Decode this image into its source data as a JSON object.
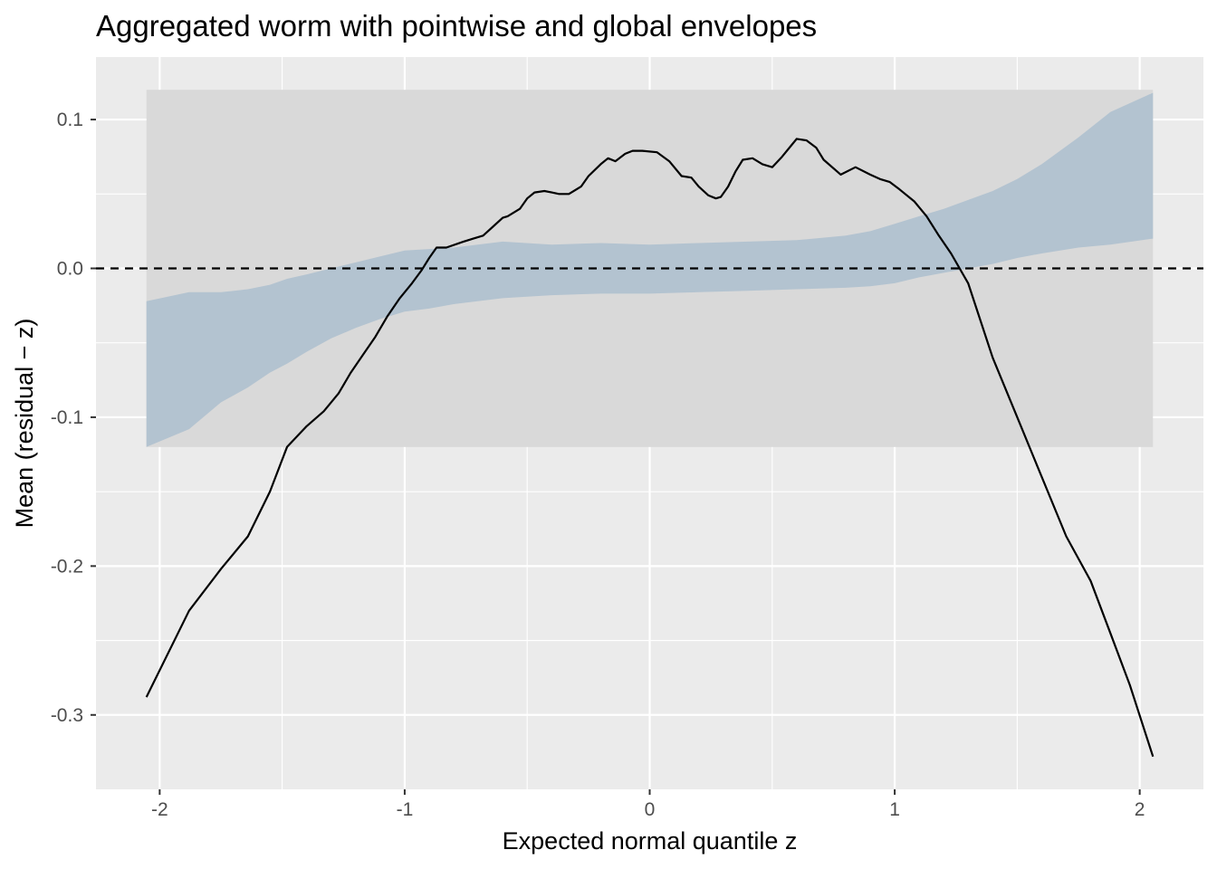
{
  "chart_data": {
    "type": "line",
    "title": "Aggregated worm with pointwise and global envelopes",
    "xlabel": "Expected normal quantile z",
    "ylabel": "Mean (residual − z)",
    "xlim": [
      -2.26,
      2.26
    ],
    "ylim": [
      -0.35,
      0.142
    ],
    "x_ticks": [
      -2,
      -1,
      0,
      1,
      2
    ],
    "x_tick_labels": [
      "-2",
      "-1",
      "0",
      "1",
      "2"
    ],
    "y_ticks": [
      -0.3,
      -0.2,
      -0.1,
      0.0,
      0.1
    ],
    "y_tick_labels": [
      "-0.3",
      "-0.2",
      "-0.1",
      "0.0",
      "0.1"
    ],
    "grid": true,
    "legend": "none",
    "colors": {
      "panel_background": "#ebebeb",
      "gridline": "#ffffff",
      "global_envelope": "#d9d9d9",
      "pointwise_envelope": "#b3c3d0",
      "worm_line": "#000000",
      "reference_line": "#000000"
    },
    "reference_line": {
      "y": 0,
      "style": "dashed"
    },
    "global_envelope": {
      "x_range": [
        -2.054,
        2.054
      ],
      "lower": -0.12,
      "upper": 0.12
    },
    "pointwise_envelope": {
      "x": [
        -2.054,
        -1.88,
        -1.75,
        -1.64,
        -1.55,
        -1.48,
        -1.4,
        -1.3,
        -1.2,
        -1.1,
        -1.0,
        -0.9,
        -0.8,
        -0.6,
        -0.4,
        -0.2,
        0.0,
        0.2,
        0.4,
        0.6,
        0.8,
        0.9,
        1.0,
        1.1,
        1.2,
        1.3,
        1.4,
        1.5,
        1.6,
        1.75,
        1.88,
        2.054
      ],
      "lower": [
        -0.12,
        -0.108,
        -0.09,
        -0.08,
        -0.07,
        -0.064,
        -0.056,
        -0.047,
        -0.04,
        -0.034,
        -0.029,
        -0.027,
        -0.024,
        -0.02,
        -0.018,
        -0.017,
        -0.017,
        -0.016,
        -0.015,
        -0.014,
        -0.013,
        -0.012,
        -0.01,
        -0.006,
        -0.003,
        0.0,
        0.003,
        0.007,
        0.01,
        0.014,
        0.016,
        0.02
      ],
      "upper": [
        -0.022,
        -0.016,
        -0.016,
        -0.014,
        -0.011,
        -0.007,
        -0.004,
        0.0,
        0.004,
        0.008,
        0.012,
        0.013,
        0.014,
        0.018,
        0.016,
        0.017,
        0.016,
        0.017,
        0.018,
        0.019,
        0.022,
        0.025,
        0.03,
        0.035,
        0.04,
        0.046,
        0.052,
        0.06,
        0.07,
        0.088,
        0.105,
        0.118
      ]
    },
    "series": [
      {
        "x": [
          -2.054,
          -1.88,
          -1.75,
          -1.64,
          -1.55,
          -1.48,
          -1.4,
          -1.33,
          -1.27,
          -1.22,
          -1.17,
          -1.12,
          -1.07,
          -1.02,
          -0.97,
          -0.93,
          -0.9,
          -0.87,
          -0.83,
          -0.76,
          -0.72,
          -0.68,
          -0.64,
          -0.6,
          -0.58,
          -0.53,
          -0.5,
          -0.47,
          -0.43,
          -0.4,
          -0.37,
          -0.33,
          -0.28,
          -0.25,
          -0.2,
          -0.17,
          -0.14,
          -0.1,
          -0.07,
          -0.03,
          0.03,
          0.08,
          0.13,
          0.17,
          0.2,
          0.24,
          0.27,
          0.29,
          0.32,
          0.35,
          0.38,
          0.42,
          0.46,
          0.5,
          0.54,
          0.58,
          0.6,
          0.64,
          0.68,
          0.71,
          0.78,
          0.84,
          0.9,
          0.94,
          0.98,
          1.02,
          1.08,
          1.13,
          1.18,
          1.23,
          1.3,
          1.4,
          1.5,
          1.6,
          1.7,
          1.8,
          1.88,
          1.96,
          2.054
        ],
        "y": [
          -0.288,
          -0.23,
          -0.202,
          -0.18,
          -0.15,
          -0.12,
          -0.106,
          -0.096,
          -0.084,
          -0.07,
          -0.058,
          -0.046,
          -0.032,
          -0.02,
          -0.01,
          -0.001,
          0.007,
          0.014,
          0.014,
          0.018,
          0.02,
          0.022,
          0.028,
          0.034,
          0.035,
          0.04,
          0.047,
          0.051,
          0.052,
          0.051,
          0.05,
          0.05,
          0.055,
          0.062,
          0.07,
          0.074,
          0.072,
          0.077,
          0.079,
          0.079,
          0.078,
          0.072,
          0.062,
          0.061,
          0.055,
          0.049,
          0.047,
          0.048,
          0.055,
          0.065,
          0.073,
          0.074,
          0.07,
          0.068,
          0.075,
          0.083,
          0.087,
          0.086,
          0.081,
          0.073,
          0.063,
          0.068,
          0.063,
          0.06,
          0.058,
          0.053,
          0.045,
          0.035,
          0.022,
          0.01,
          -0.01,
          -0.06,
          -0.1,
          -0.14,
          -0.18,
          -0.21,
          -0.245,
          -0.28,
          -0.328
        ]
      }
    ]
  }
}
